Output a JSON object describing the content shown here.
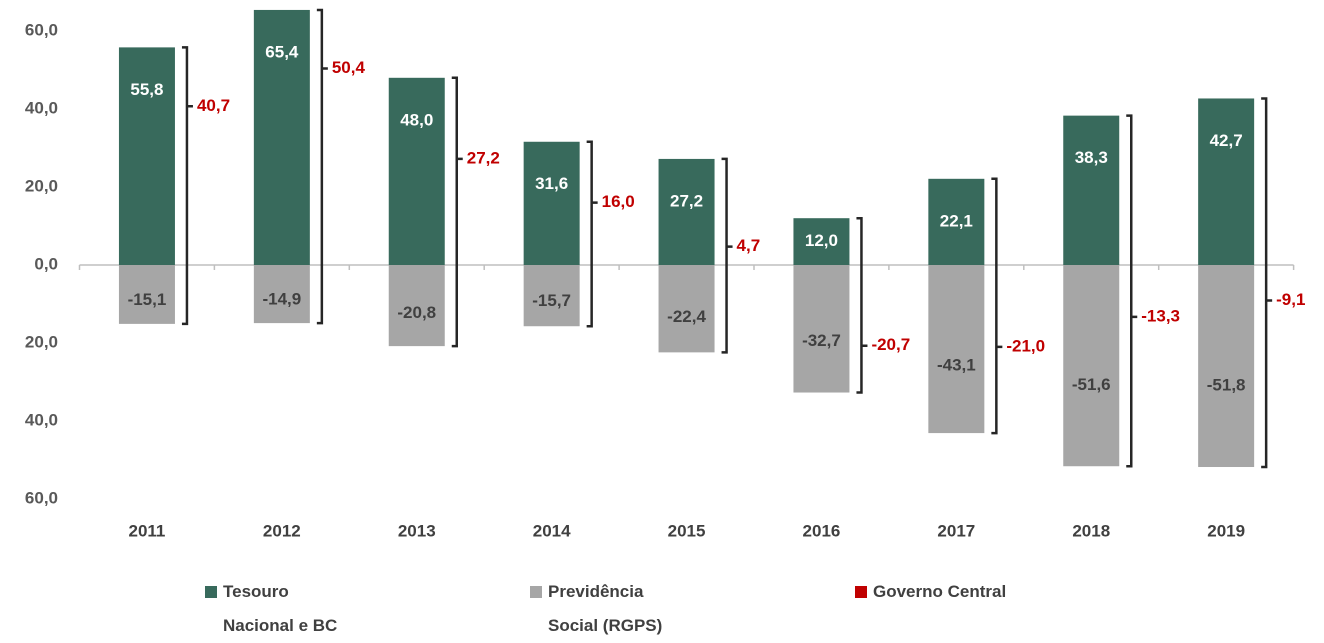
{
  "chart_data": {
    "type": "bar",
    "categories": [
      "2011",
      "2012",
      "2013",
      "2014",
      "2015",
      "2016",
      "2017",
      "2018",
      "2019"
    ],
    "series": [
      {
        "name": "Tesouro Nacional e BC",
        "color": "#386a5c",
        "values": [
          55.8,
          65.4,
          48.0,
          31.6,
          27.2,
          12.0,
          22.1,
          38.3,
          42.7
        ],
        "value_labels": [
          "55,8",
          "65,4",
          "48,0",
          "31,6",
          "27,2",
          "12,0",
          "22,1",
          "38,3",
          "42,7"
        ]
      },
      {
        "name": "Previdência Social (RGPS)",
        "color": "#a6a6a6",
        "values": [
          -15.1,
          -14.9,
          -20.8,
          -15.7,
          -22.4,
          -32.7,
          -43.1,
          -51.6,
          -51.8
        ],
        "value_labels": [
          "-15,1",
          "-14,9",
          "-20,8",
          "-15,7",
          "-22,4",
          "-32,7",
          "-43,1",
          "-51,6",
          "-51,8"
        ]
      },
      {
        "name": "Governo Central",
        "color": "#c00000",
        "values": [
          40.7,
          50.4,
          27.2,
          16.0,
          4.7,
          -20.7,
          -21.0,
          -13.3,
          -9.1
        ],
        "value_labels": [
          "40,7",
          "50,4",
          "27,2",
          "16,0",
          "4,7",
          "-20,7",
          "-21,0",
          "-13,3",
          "-9,1"
        ]
      }
    ],
    "ylim": [
      -60,
      66
    ],
    "yticks": [
      {
        "value": 60,
        "label": "60,0"
      },
      {
        "value": 40,
        "label": "40,0"
      },
      {
        "value": 20,
        "label": "20,0"
      },
      {
        "value": 0,
        "label": "0,0"
      },
      {
        "value": -20,
        "label": "20,0"
      },
      {
        "value": -40,
        "label": "40,0"
      },
      {
        "value": -60,
        "label": "60,0"
      }
    ],
    "grid": false
  }
}
